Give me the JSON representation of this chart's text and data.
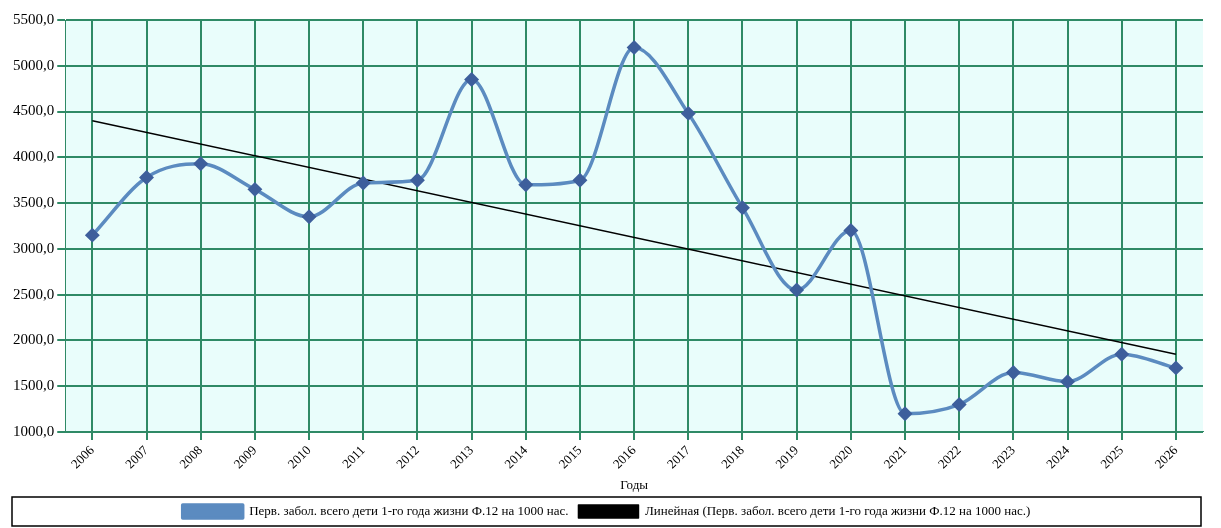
{
  "chart_data": {
    "type": "line",
    "xlabel": "Годы",
    "x": [
      2006,
      2007,
      2008,
      2009,
      2010,
      2011,
      2012,
      2013,
      2014,
      2015,
      2016,
      2017,
      2018,
      2019,
      2020,
      2021,
      2022,
      2023,
      2024,
      2025,
      2026
    ],
    "series": [
      {
        "name": "Перв. забол. всего дети 1-го года жизни Ф.12 на 1000 нас.",
        "color": "#5b8bc0",
        "marker": "diamond",
        "values": [
          3150,
          3780,
          3930,
          3650,
          3350,
          3720,
          3750,
          4850,
          3700,
          3750,
          5200,
          4480,
          3450,
          2550,
          3200,
          1200,
          1300,
          1650,
          1550,
          1850,
          1700
        ]
      },
      {
        "name": "Линейная (Перв. забол. всего дети 1-го года жизни Ф.12 на 1000 нас.)",
        "color": "#000000",
        "marker": "none",
        "line_style": "solid",
        "x": [
          2006,
          2026
        ],
        "values": [
          4400,
          1850
        ]
      }
    ],
    "xlim": [
      2005.5,
      2026.5
    ],
    "xticks": [
      2006,
      2007,
      2008,
      2009,
      2010,
      2011,
      2012,
      2013,
      2014,
      2015,
      2016,
      2017,
      2018,
      2019,
      2020,
      2021,
      2022,
      2023,
      2024,
      2025,
      2026
    ],
    "ylim": [
      1000,
      5500
    ],
    "yticks": [
      {
        "value": 1000,
        "label": "1000,0"
      },
      {
        "value": 1500,
        "label": "1500,0"
      },
      {
        "value": 2000,
        "label": "2000,0"
      },
      {
        "value": 2500,
        "label": "2500,0"
      },
      {
        "value": 3000,
        "label": "3000,0"
      },
      {
        "value": 3500,
        "label": "3500,0"
      },
      {
        "value": 4000,
        "label": "4000,0"
      },
      {
        "value": 4500,
        "label": "4500,0"
      },
      {
        "value": 5000,
        "label": "5000,0"
      },
      {
        "value": 5500,
        "label": "5500,0"
      }
    ],
    "grid": true,
    "legend": "bottom"
  }
}
